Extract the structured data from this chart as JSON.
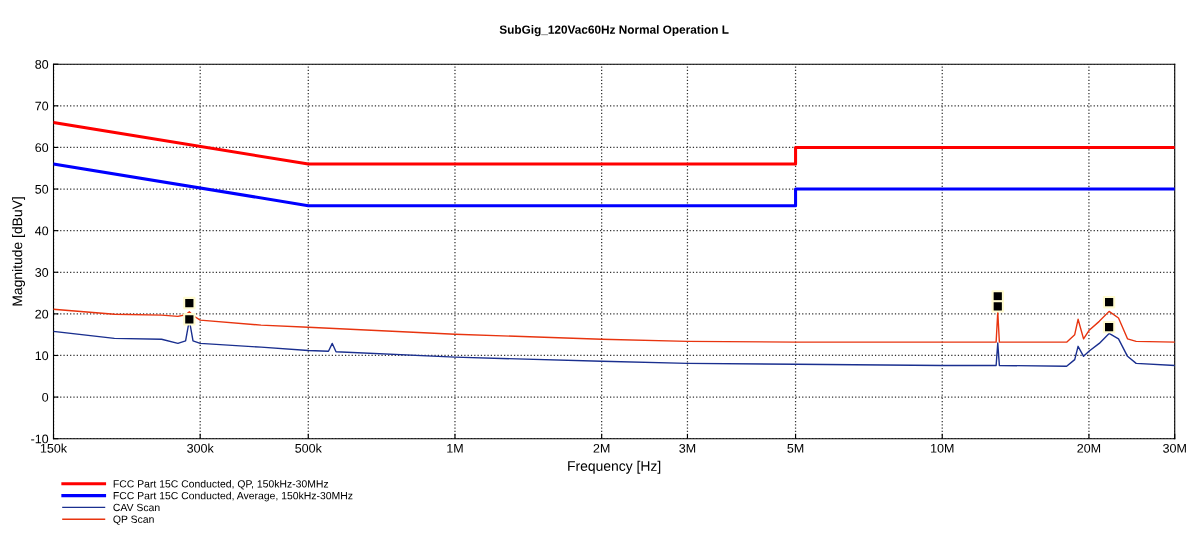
{
  "chart_data": {
    "type": "line",
    "title": "SubGig_120Vac60Hz Normal Operation L",
    "xlabel": "Frequency [Hz]",
    "ylabel": "Magnitude [dBuV]",
    "log": "x",
    "grid": true,
    "legend": "bottom left",
    "line_style": "solid",
    "marker": "none",
    "xlim": [
      150000,
      30000000
    ],
    "ylim": [
      -10,
      80
    ],
    "xticks": [
      {
        "value": 150000,
        "label": "150k"
      },
      {
        "value": 300000,
        "label": "300k"
      },
      {
        "value": 500000,
        "label": "500k"
      },
      {
        "value": 1000000,
        "label": "1M"
      },
      {
        "value": 2000000,
        "label": "2M"
      },
      {
        "value": 3000000,
        "label": "3M"
      },
      {
        "value": 5000000,
        "label": "5M"
      },
      {
        "value": 10000000,
        "label": "10M"
      },
      {
        "value": 20000000,
        "label": "20M"
      },
      {
        "value": 30000000,
        "label": "30M"
      }
    ],
    "yticks": [
      -10,
      0,
      10,
      20,
      30,
      40,
      50,
      60,
      70,
      80
    ],
    "series": [
      {
        "name": "FCC Part 15C Conducted, QP, 150kHz-30MHz",
        "color": "#ff0000",
        "x": [
          150000,
          500000,
          5000000,
          5000000,
          30000000
        ],
        "values": [
          66,
          56,
          56,
          60,
          60
        ]
      },
      {
        "name": "FCC Part 15C Conducted, Average, 150kHz-30MHz",
        "color": "#0000ff",
        "x": [
          150000,
          500000,
          5000000,
          5000000,
          30000000
        ],
        "values": [
          56,
          46,
          46,
          50,
          50
        ]
      },
      {
        "name": "CAV Scan",
        "color": "#1a2f8f",
        "x": [
          150000,
          200000,
          250000,
          270000,
          280000,
          285000,
          290000,
          300000,
          400000,
          500000,
          550000,
          560000,
          570000,
          1000000,
          2000000,
          3000000,
          5000000,
          10000000,
          12900000,
          13000000,
          13100000,
          18000000,
          18700000,
          19000000,
          19500000,
          20000000,
          21000000,
          22000000,
          23000000,
          24000000,
          25000000,
          30000000
        ],
        "values": [
          15.8,
          14.1,
          13.9,
          12.9,
          13.5,
          18.5,
          13.5,
          12.9,
          12.0,
          11.2,
          11.0,
          12.9,
          10.9,
          9.6,
          8.6,
          8.1,
          7.9,
          7.6,
          7.6,
          13.0,
          7.6,
          7.4,
          9.0,
          12.2,
          9.8,
          11.0,
          12.9,
          15.3,
          14.0,
          9.8,
          8.1,
          7.6
        ]
      },
      {
        "name": "QP Scan",
        "color": "#e8340f",
        "x": [
          150000,
          200000,
          250000,
          270000,
          280000,
          285000,
          290000,
          300000,
          400000,
          500000,
          1000000,
          2000000,
          3000000,
          5000000,
          10000000,
          12900000,
          13000000,
          13100000,
          18000000,
          18700000,
          19000000,
          19500000,
          20000000,
          21000000,
          22000000,
          23000000,
          24000000,
          25000000,
          30000000
        ],
        "values": [
          21.1,
          19.9,
          19.7,
          19.4,
          19.8,
          20.5,
          19.6,
          18.5,
          17.3,
          16.8,
          15.1,
          13.9,
          13.4,
          13.2,
          13.2,
          13.2,
          20.5,
          13.2,
          13.2,
          15.0,
          18.7,
          14.0,
          16.0,
          18.2,
          20.6,
          19.0,
          14.0,
          13.4,
          13.2
        ]
      },
      {
        "type": "scatter",
        "marker": "square",
        "color": "#000000",
        "x": [
          285000,
          285000,
          13000000,
          13000000,
          22000000,
          22000000
        ],
        "values": [
          22.6,
          18.7,
          24.2,
          21.8,
          22.8,
          16.8
        ]
      }
    ]
  }
}
